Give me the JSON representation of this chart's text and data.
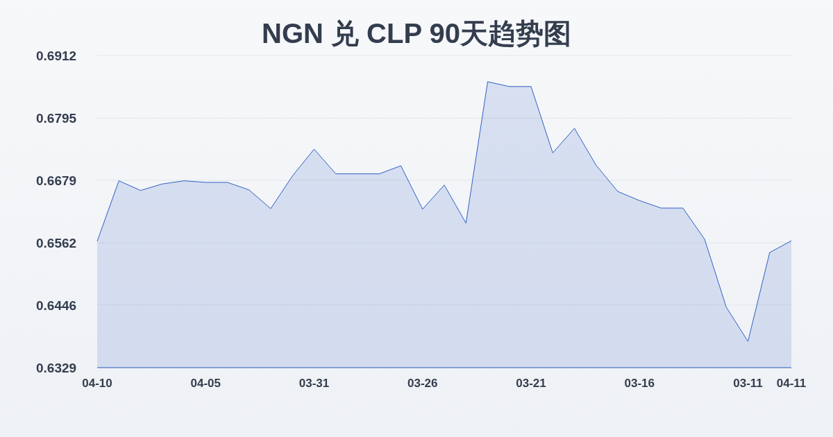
{
  "chart_data": {
    "type": "area",
    "title": "NGN 兑 CLP 90天趋势图",
    "categories": [
      "04-10",
      null,
      null,
      null,
      null,
      "04-05",
      null,
      null,
      null,
      null,
      "03-31",
      null,
      null,
      null,
      null,
      "03-26",
      null,
      null,
      null,
      null,
      "03-21",
      null,
      null,
      null,
      null,
      "03-16",
      null,
      null,
      null,
      null,
      "03-11",
      null,
      "04-11"
    ],
    "values": [
      0.6565,
      0.6678,
      0.666,
      0.6672,
      0.6678,
      0.6675,
      0.6675,
      0.6661,
      0.6626,
      0.6687,
      0.6737,
      0.6691,
      0.6691,
      0.6691,
      0.6706,
      0.6625,
      0.667,
      0.6599,
      0.6863,
      0.6854,
      0.6854,
      0.673,
      0.6776,
      0.6707,
      0.6658,
      0.6641,
      0.6627,
      0.6627,
      0.6569,
      0.6442,
      0.6378,
      0.6544,
      0.6566
    ],
    "color": "#2f5fc4",
    "ylim": [
      0.6329,
      0.6912
    ],
    "yticks": [
      0.6329,
      0.6446,
      0.6562,
      0.6679,
      0.6795,
      0.6912
    ],
    "grid": "y"
  }
}
